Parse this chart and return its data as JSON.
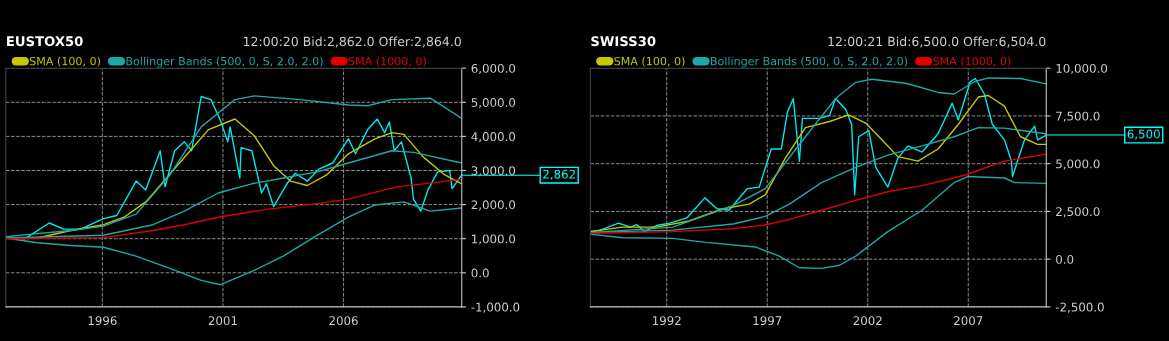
{
  "chart_data": [
    {
      "type": "line",
      "title": "EUSTOX50",
      "annotations": [
        "12:00:20 Bid:2,862.0 Offer:2,864.0",
        {
          "text": "2,862",
          "x": 2010.9,
          "y": 2862
        }
      ],
      "xlim": [
        1992.0,
        2010.9
      ],
      "xticks": [
        1996,
        2001,
        2006
      ],
      "ylim": [
        -1000,
        6000
      ],
      "yticks": [
        {
          "value": -1000,
          "label": "-1,000.0"
        },
        {
          "value": 0,
          "label": "0.0"
        },
        {
          "value": 1000,
          "label": "1,000.0"
        },
        {
          "value": 2000,
          "label": "2,000.0"
        },
        {
          "value": 3000,
          "label": "3,000.0"
        },
        {
          "value": 4000,
          "label": "4,000.0"
        },
        {
          "value": 5000,
          "label": "5,000.0"
        },
        {
          "value": 6000,
          "label": "6,000.0"
        }
      ],
      "grid": true,
      "legend": "top left",
      "series": [
        {
          "color": "#00e8f0",
          "x": [
            1992.0,
            1992.8,
            1993.8,
            1994.4,
            1995.1,
            1996.05,
            1996.6,
            1997.4,
            1997.8,
            1998.4,
            1998.6,
            1999.0,
            1999.4,
            1999.7,
            2000.1,
            2000.5,
            2000.9,
            2001.2,
            2001.3,
            2001.7,
            2001.75,
            2002.2,
            2002.6,
            2002.8,
            2003.1,
            2003.65,
            2004.0,
            2004.5,
            2005.0,
            2005.55,
            2006.2,
            2006.5,
            2007.0,
            2007.4,
            2007.7,
            2007.9,
            2008.1,
            2008.4,
            2008.8,
            2008.9,
            2009.2,
            2009.5,
            2009.9,
            2010.4,
            2010.5,
            2010.9
          ],
          "values": [
            1060,
            1000,
            1460,
            1280,
            1280,
            1590,
            1680,
            2690,
            2430,
            3580,
            2520,
            3580,
            3840,
            3580,
            5170,
            5080,
            4460,
            3840,
            4280,
            2780,
            3670,
            3580,
            2340,
            2610,
            1940,
            2610,
            2920,
            2690,
            3050,
            3220,
            3930,
            3490,
            4200,
            4510,
            4110,
            4420,
            3580,
            3840,
            2780,
            2160,
            1810,
            2430,
            2960,
            3000,
            2470,
            2870
          ]
        },
        {
          "name": "SMA (100, 0)",
          "color": "#c8c800",
          "x": [
            1993.3,
            1994.7,
            1996.05,
            1996.9,
            1997.8,
            1999.2,
            2000.4,
            2001.5,
            2002.3,
            2003.1,
            2003.8,
            2004.5,
            2005.3,
            2006.2,
            2007.3,
            2008.0,
            2008.5,
            2009.3,
            2010.2,
            2010.9
          ],
          "values": [
            1020,
            1240,
            1410,
            1630,
            2080,
            3220,
            4200,
            4510,
            4020,
            3140,
            2690,
            2560,
            2870,
            3490,
            3930,
            4110,
            4060,
            3400,
            2870,
            2610
          ]
        },
        {
          "name": "Bollinger Bands (500, 0, S, 2.0, 2.0)",
          "color": "#1fa8a8",
          "x": [
            1992.0,
            1994.7,
            1996.05,
            1997.4,
            1998.8,
            2000.1,
            2001.5,
            2002.3,
            2004.2,
            2006.2,
            2007.0,
            2008.0,
            2009.6,
            2010.9
          ],
          "values": [
            1060,
            1240,
            1370,
            1720,
            2870,
            4280,
            5080,
            5190,
            5080,
            4920,
            4900,
            5080,
            5120,
            4530
          ]
        },
        {
          "color": "#1fa8a8",
          "x": [
            1992.0,
            1996.05,
            1998.1,
            1999.4,
            2000.8,
            2002.2,
            2003.5,
            2004.9,
            2006.2,
            2008.0,
            2008.9,
            2010.9
          ],
          "values": [
            1020,
            1100,
            1410,
            1810,
            2340,
            2610,
            2780,
            2960,
            3220,
            3580,
            3530,
            3220
          ]
        },
        {
          "color": "#1fa8a8",
          "x": [
            1992.0,
            1993.3,
            1994.7,
            1996.05,
            1997.4,
            1998.8,
            2000.1,
            2000.9,
            2002.2,
            2003.5,
            2004.9,
            2006.2,
            2007.3,
            2008.5,
            2009.6,
            2010.9
          ],
          "values": [
            1020,
            880,
            800,
            750,
            490,
            130,
            -220,
            -350,
            40,
            490,
            1100,
            1630,
            1990,
            2080,
            1810,
            1900
          ]
        },
        {
          "name": "SMA (1000, 0)",
          "color": "#e00000",
          "x": [
            1992.0,
            1996.05,
            1998.1,
            1999.4,
            2000.8,
            2002.8,
            2004.9,
            2006.2,
            2008.2,
            2010.9
          ],
          "values": [
            1000,
            1030,
            1240,
            1410,
            1630,
            1860,
            2030,
            2160,
            2520,
            2740
          ]
        }
      ]
    },
    {
      "type": "line",
      "title": "SWISS30",
      "annotations": [
        "12:00:21 Bid:6,500.0 Offer:6,504.0",
        {
          "text": "6,500",
          "x": 2010.88,
          "y": 6500
        }
      ],
      "xlim": [
        1988.2,
        2010.88
      ],
      "xticks": [
        1992,
        1997,
        2002,
        2007
      ],
      "ylim": [
        -2500,
        10000
      ],
      "yticks": [
        {
          "value": -2500,
          "label": "-2,500.0"
        },
        {
          "value": 0,
          "label": "0.0"
        },
        {
          "value": 2500,
          "label": "2,500.0"
        },
        {
          "value": 5000,
          "label": "5,000.0"
        },
        {
          "value": 7500,
          "label": "7,500.0"
        },
        {
          "value": 10000,
          "label": "10,000.0"
        }
      ],
      "grid": true,
      "legend": "top left",
      "series": [
        {
          "color": "#00e8f0",
          "x": [
            1988.2,
            1988.7,
            1989.6,
            1990.2,
            1990.5,
            1990.9,
            1991.5,
            1992.15,
            1993.0,
            1993.9,
            1994.5,
            1995.1,
            1996.0,
            1996.6,
            1997.2,
            1997.7,
            1998.0,
            1998.3,
            1998.6,
            1998.75,
            1999.6,
            2000.1,
            2000.4,
            2000.9,
            2001.2,
            2001.35,
            2001.55,
            2002.05,
            2002.4,
            2003.0,
            2003.5,
            2004.0,
            2004.7,
            2005.5,
            2006.2,
            2006.5,
            2007.1,
            2007.35,
            2007.8,
            2008.2,
            2008.8,
            2009.15,
            2009.2,
            2009.8,
            2010.3,
            2010.45,
            2010.88
          ],
          "values": [
            1440,
            1520,
            1890,
            1680,
            1810,
            1440,
            1760,
            1890,
            2160,
            3210,
            2640,
            2560,
            3690,
            3770,
            5770,
            5770,
            7690,
            8410,
            5130,
            7370,
            7370,
            7530,
            8410,
            7850,
            7050,
            3370,
            6410,
            6730,
            4810,
            3770,
            5290,
            5930,
            5610,
            6570,
            8170,
            7290,
            9290,
            9460,
            8650,
            7050,
            6250,
            5130,
            4330,
            6250,
            6970,
            6250,
            6490
          ]
        },
        {
          "name": "SMA (100, 0)",
          "color": "#c8c800",
          "x": [
            1988.2,
            1989.8,
            1991.5,
            1993.1,
            1994.8,
            1996.1,
            1996.9,
            1997.9,
            1998.9,
            2000.1,
            2001.05,
            2001.9,
            2002.7,
            2003.5,
            2004.5,
            2005.5,
            2006.5,
            2007.5,
            2008.0,
            2008.8,
            2009.6,
            2010.45,
            2010.88
          ],
          "values": [
            1440,
            1680,
            1680,
            2000,
            2640,
            2880,
            3370,
            5290,
            6890,
            7210,
            7560,
            7130,
            6250,
            5370,
            5130,
            5770,
            7050,
            8490,
            8570,
            8010,
            6410,
            6010,
            6010
          ]
        },
        {
          "name": "Bollinger Bands (500, 0, S, 2.0, 2.0)",
          "color": "#1fa8a8",
          "x": [
            1988.2,
            1992.3,
            1995.3,
            1996.9,
            1998.9,
            2000.4,
            2001.4,
            2002.2,
            2003.9,
            2005.5,
            2006.3,
            2007.3,
            2008.0,
            2009.6,
            2010.88
          ],
          "values": [
            1390,
            1680,
            2800,
            3690,
            6410,
            8410,
            9260,
            9420,
            9210,
            8730,
            8650,
            9290,
            9490,
            9460,
            9180
          ]
        },
        {
          "color": "#1fa8a8",
          "x": [
            1988.2,
            1992.3,
            1995.3,
            1996.9,
            1998.1,
            1999.7,
            2001.4,
            2003.0,
            2004.7,
            2006.3,
            2007.5,
            2008.8,
            2010.88
          ],
          "values": [
            1390,
            1520,
            1840,
            2240,
            2880,
            4010,
            4810,
            5450,
            5930,
            6410,
            6890,
            6860,
            6570
          ]
        },
        {
          "color": "#1fa8a8",
          "x": [
            1988.2,
            1989.8,
            1992.3,
            1993.96,
            1996.4,
            1997.6,
            1998.6,
            1999.7,
            2000.6,
            2001.4,
            2003.0,
            2004.7,
            2006.3,
            2007.0,
            2008.8,
            2009.3,
            2010.88
          ],
          "values": [
            1310,
            1120,
            1090,
            880,
            640,
            160,
            -450,
            -480,
            -320,
            160,
            1440,
            2560,
            4010,
            4330,
            4250,
            4010,
            3970
          ]
        },
        {
          "name": "SMA (1000, 0)",
          "color": "#e00000",
          "x": [
            1988.2,
            1992.3,
            1995.3,
            1996.9,
            1998.1,
            1999.7,
            2001.4,
            2003.0,
            2004.7,
            2006.3,
            2007.0,
            2008.8,
            2010.88
          ],
          "values": [
            1360,
            1440,
            1600,
            1790,
            2080,
            2560,
            3080,
            3530,
            3850,
            4250,
            4460,
            5130,
            5500
          ]
        }
      ]
    }
  ]
}
